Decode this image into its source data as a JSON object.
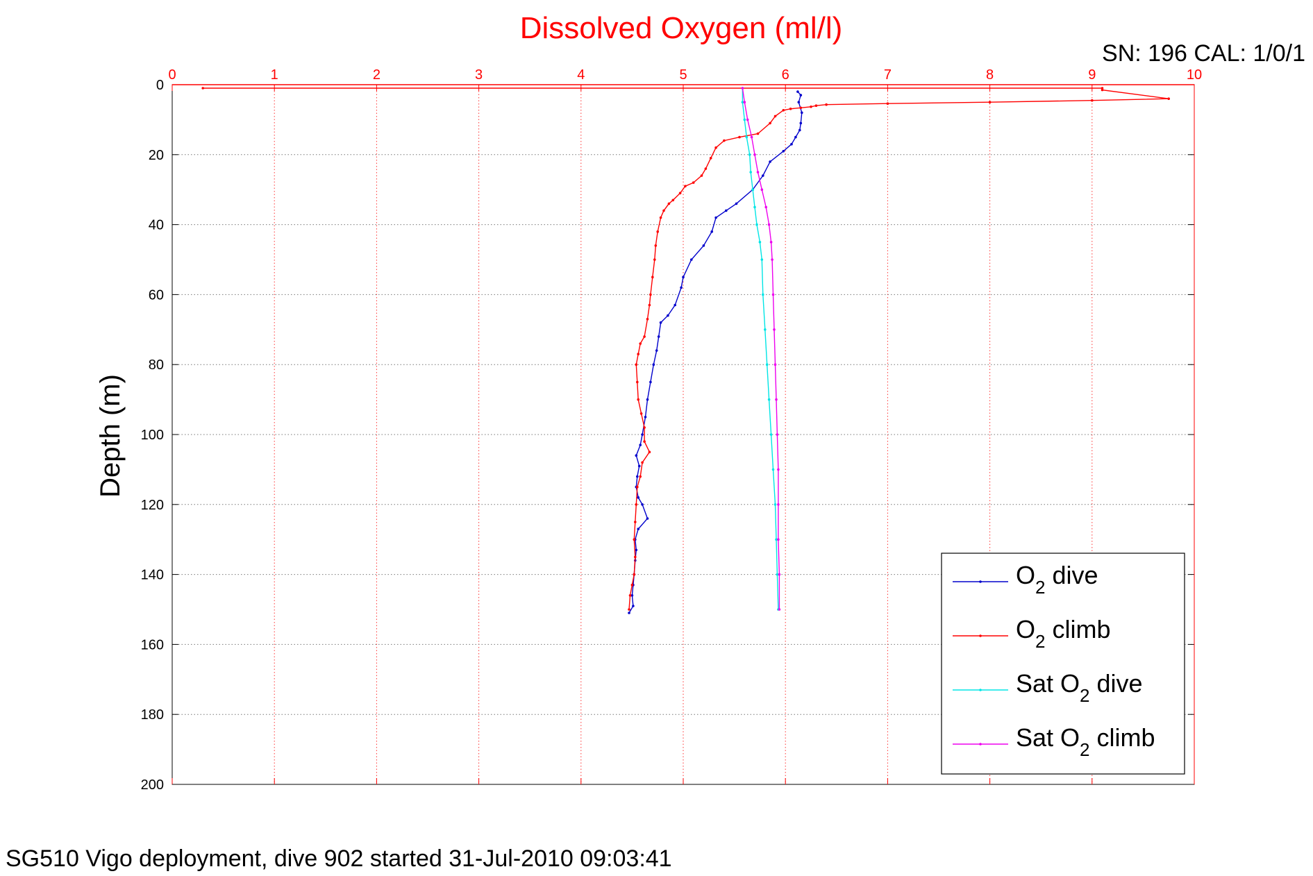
{
  "chart_data": {
    "type": "line",
    "title": "Dissolved Oxygen (ml/l)",
    "ylabel": "Depth (m)",
    "xlabel": "",
    "sn_label": "SN: 196  CAL: 1/0/1",
    "caption": "SG510 Vigo deployment, dive 902 started 31-Jul-2010 09:03:41",
    "xlim": [
      0,
      10
    ],
    "ylim": [
      0,
      200
    ],
    "y_reversed": true,
    "x_axis_position": "top",
    "grid": true,
    "legend_position": "bottom-right",
    "x_ticks": [
      "0",
      "1",
      "2",
      "3",
      "4",
      "5",
      "6",
      "7",
      "8",
      "9",
      "10"
    ],
    "y_ticks": [
      "0",
      "20",
      "40",
      "60",
      "80",
      "100",
      "120",
      "140",
      "160",
      "180",
      "200"
    ],
    "colors": {
      "title": "#ff0000",
      "x_axis": "#ff0000",
      "grid": "#999999"
    },
    "series": [
      {
        "name": "O2 dive",
        "legend_main": "O",
        "legend_sub": "2",
        "legend_rest": " dive",
        "color": "#0000cc",
        "points": [
          [
            6.12,
            2
          ],
          [
            6.15,
            3
          ],
          [
            6.13,
            5
          ],
          [
            6.16,
            8
          ],
          [
            6.15,
            11
          ],
          [
            6.14,
            13
          ],
          [
            6.1,
            15
          ],
          [
            6.06,
            17
          ],
          [
            5.98,
            19
          ],
          [
            5.85,
            22
          ],
          [
            5.78,
            26
          ],
          [
            5.68,
            30
          ],
          [
            5.52,
            34
          ],
          [
            5.42,
            36
          ],
          [
            5.32,
            38
          ],
          [
            5.28,
            42
          ],
          [
            5.2,
            46
          ],
          [
            5.08,
            50
          ],
          [
            5.0,
            55
          ],
          [
            4.98,
            58
          ],
          [
            4.92,
            63
          ],
          [
            4.85,
            66
          ],
          [
            4.78,
            68
          ],
          [
            4.76,
            72
          ],
          [
            4.74,
            76
          ],
          [
            4.71,
            80
          ],
          [
            4.68,
            85
          ],
          [
            4.65,
            90
          ],
          [
            4.63,
            95
          ],
          [
            4.6,
            100
          ],
          [
            4.58,
            103
          ],
          [
            4.54,
            106
          ],
          [
            4.57,
            109
          ],
          [
            4.55,
            112
          ],
          [
            4.54,
            115
          ],
          [
            4.56,
            118
          ],
          [
            4.6,
            120
          ],
          [
            4.65,
            124
          ],
          [
            4.56,
            127
          ],
          [
            4.53,
            130
          ],
          [
            4.54,
            133
          ],
          [
            4.53,
            136
          ],
          [
            4.52,
            140
          ],
          [
            4.51,
            143
          ],
          [
            4.5,
            146
          ],
          [
            4.51,
            149
          ],
          [
            4.47,
            151
          ]
        ]
      },
      {
        "name": "O2 climb",
        "legend_main": "O",
        "legend_sub": "2",
        "legend_rest": " climb",
        "color": "#ff0000",
        "points": [
          [
            0.3,
            1
          ],
          [
            9.1,
            1
          ],
          [
            9.1,
            1.5
          ],
          [
            9.75,
            4
          ],
          [
            9.0,
            4.5
          ],
          [
            8.0,
            5
          ],
          [
            7.0,
            5.4
          ],
          [
            6.4,
            5.7
          ],
          [
            6.3,
            6
          ],
          [
            6.25,
            6.3
          ],
          [
            6.15,
            6.6
          ],
          [
            6.05,
            6.9
          ],
          [
            5.98,
            7.3
          ],
          [
            5.9,
            9
          ],
          [
            5.85,
            11
          ],
          [
            5.73,
            14
          ],
          [
            5.55,
            15
          ],
          [
            5.4,
            16
          ],
          [
            5.32,
            18
          ],
          [
            5.27,
            21
          ],
          [
            5.22,
            24
          ],
          [
            5.18,
            26
          ],
          [
            5.1,
            28
          ],
          [
            5.02,
            29
          ],
          [
            4.97,
            31
          ],
          [
            4.9,
            33
          ],
          [
            4.86,
            34
          ],
          [
            4.81,
            36
          ],
          [
            4.78,
            38
          ],
          [
            4.75,
            42
          ],
          [
            4.73,
            46
          ],
          [
            4.72,
            50
          ],
          [
            4.7,
            55
          ],
          [
            4.68,
            60
          ],
          [
            4.67,
            63
          ],
          [
            4.65,
            67
          ],
          [
            4.62,
            72
          ],
          [
            4.58,
            74
          ],
          [
            4.56,
            77
          ],
          [
            4.54,
            80
          ],
          [
            4.55,
            85
          ],
          [
            4.56,
            90
          ],
          [
            4.59,
            94
          ],
          [
            4.62,
            98
          ],
          [
            4.62,
            102
          ],
          [
            4.67,
            105
          ],
          [
            4.6,
            108
          ],
          [
            4.58,
            112
          ],
          [
            4.55,
            115
          ],
          [
            4.54,
            120
          ],
          [
            4.53,
            125
          ],
          [
            4.52,
            130
          ],
          [
            4.53,
            135
          ],
          [
            4.52,
            140
          ],
          [
            4.5,
            143
          ],
          [
            4.48,
            146
          ],
          [
            4.47,
            150
          ]
        ]
      },
      {
        "name": "Sat O2 dive",
        "legend_main": "Sat O",
        "legend_sub": "2",
        "legend_rest": " dive",
        "color": "#00e5e5",
        "points": [
          [
            5.58,
            1
          ],
          [
            5.58,
            5
          ],
          [
            5.6,
            10
          ],
          [
            5.62,
            15
          ],
          [
            5.65,
            20
          ],
          [
            5.66,
            25
          ],
          [
            5.68,
            30
          ],
          [
            5.7,
            35
          ],
          [
            5.72,
            40
          ],
          [
            5.75,
            45
          ],
          [
            5.77,
            50
          ],
          [
            5.78,
            60
          ],
          [
            5.8,
            70
          ],
          [
            5.82,
            80
          ],
          [
            5.84,
            90
          ],
          [
            5.86,
            100
          ],
          [
            5.88,
            110
          ],
          [
            5.9,
            120
          ],
          [
            5.91,
            130
          ],
          [
            5.92,
            140
          ],
          [
            5.93,
            150
          ]
        ]
      },
      {
        "name": "Sat O2 climb",
        "legend_main": "Sat O",
        "legend_sub": "2",
        "legend_rest": " climb",
        "color": "#ee00ee",
        "points": [
          [
            5.58,
            1
          ],
          [
            5.6,
            5
          ],
          [
            5.63,
            10
          ],
          [
            5.67,
            15
          ],
          [
            5.7,
            20
          ],
          [
            5.73,
            25
          ],
          [
            5.77,
            30
          ],
          [
            5.81,
            35
          ],
          [
            5.84,
            40
          ],
          [
            5.86,
            45
          ],
          [
            5.87,
            50
          ],
          [
            5.88,
            60
          ],
          [
            5.89,
            70
          ],
          [
            5.9,
            80
          ],
          [
            5.91,
            90
          ],
          [
            5.92,
            100
          ],
          [
            5.93,
            110
          ],
          [
            5.93,
            120
          ],
          [
            5.93,
            130
          ],
          [
            5.94,
            140
          ],
          [
            5.94,
            150
          ]
        ]
      }
    ]
  }
}
